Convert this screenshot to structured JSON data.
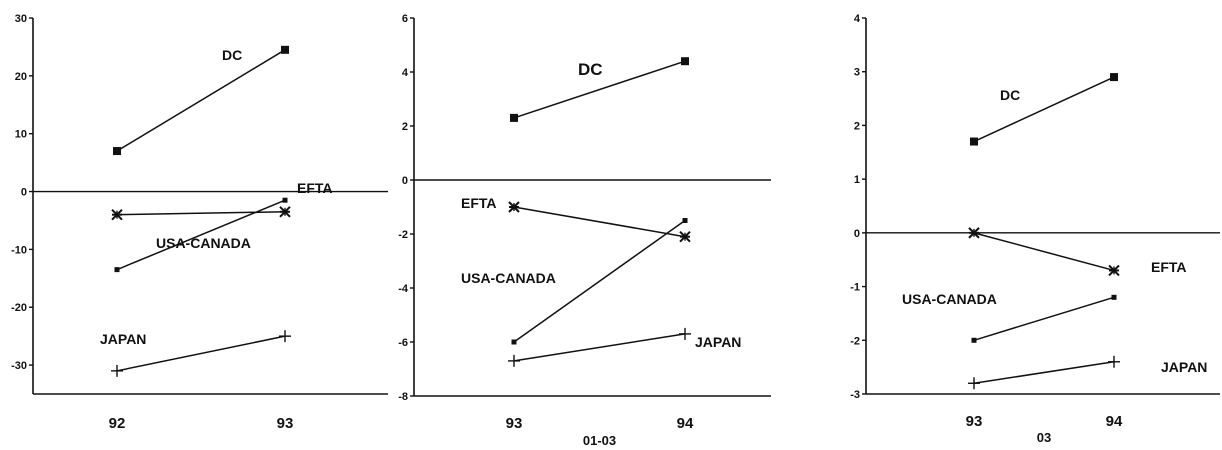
{
  "chart_data": [
    {
      "type": "line",
      "x": [
        "92",
        "93"
      ],
      "xlabel": "",
      "ylim": [
        -35,
        30
      ],
      "yticks": [
        30,
        20,
        10,
        0,
        -10,
        -20,
        -30
      ],
      "grid": false,
      "series": [
        {
          "name": "DC",
          "values": [
            7,
            24.5
          ],
          "marker": "square"
        },
        {
          "name": "EFTA",
          "values": [
            -4,
            -3.5
          ],
          "marker": "asterisk"
        },
        {
          "name": "USA-CANADA",
          "values": [
            -13.5,
            -1.5
          ],
          "marker": "dot"
        },
        {
          "name": "JAPAN",
          "values": [
            -31,
            -25
          ],
          "marker": "plus"
        }
      ]
    },
    {
      "type": "line",
      "x": [
        "93",
        "94"
      ],
      "xlabel": "01-03",
      "ylim": [
        -8,
        6
      ],
      "yticks": [
        6,
        4,
        2,
        0,
        -2,
        -4,
        -6,
        -8
      ],
      "grid": false,
      "series": [
        {
          "name": "DC",
          "values": [
            2.3,
            4.4
          ],
          "marker": "square"
        },
        {
          "name": "EFTA",
          "values": [
            -1,
            -2.1
          ],
          "marker": "asterisk"
        },
        {
          "name": "USA-CANADA",
          "values": [
            -6,
            -1.5
          ],
          "marker": "dot"
        },
        {
          "name": "JAPAN",
          "values": [
            -6.7,
            -5.7
          ],
          "marker": "plus"
        }
      ]
    },
    {
      "type": "line",
      "x": [
        "93",
        "94"
      ],
      "xlabel": "03",
      "ylim": [
        -3,
        4
      ],
      "yticks": [
        4,
        3,
        2,
        1,
        0,
        -1,
        -2,
        -3
      ],
      "grid": false,
      "series": [
        {
          "name": "DC",
          "values": [
            1.7,
            2.9
          ],
          "marker": "square"
        },
        {
          "name": "EFTA",
          "values": [
            0,
            -0.7
          ],
          "marker": "asterisk"
        },
        {
          "name": "USA-CANADA",
          "values": [
            -2,
            -1.2
          ],
          "marker": "dot"
        },
        {
          "name": "JAPAN",
          "values": [
            -2.8,
            -2.4
          ],
          "marker": "plus"
        }
      ]
    }
  ]
}
